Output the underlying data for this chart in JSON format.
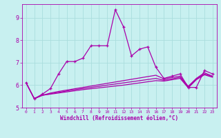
{
  "title": "",
  "xlabel": "Windchill (Refroidissement éolien,°C)",
  "ylabel": "",
  "background_color": "#c8f0f0",
  "line_color": "#aa00aa",
  "grid_color": "#aadddd",
  "xlim": [
    -0.5,
    23.5
  ],
  "ylim": [
    5.0,
    9.6
  ],
  "yticks": [
    5,
    6,
    7,
    8,
    9
  ],
  "xticks": [
    0,
    1,
    2,
    3,
    4,
    5,
    6,
    7,
    8,
    9,
    10,
    11,
    12,
    13,
    14,
    15,
    16,
    17,
    18,
    19,
    20,
    21,
    22,
    23
  ],
  "series_main": [
    6.1,
    5.4,
    5.6,
    5.85,
    6.5,
    7.05,
    7.05,
    7.2,
    7.75,
    7.75,
    7.75,
    9.35,
    8.6,
    7.3,
    7.6,
    7.7,
    6.8,
    6.3,
    6.4,
    6.5,
    5.9,
    5.9,
    6.65,
    6.5
  ],
  "series_flat1": [
    6.1,
    5.4,
    5.55,
    5.65,
    5.72,
    5.78,
    5.84,
    5.9,
    5.96,
    6.02,
    6.08,
    6.14,
    6.2,
    6.26,
    6.32,
    6.38,
    6.44,
    6.28,
    6.34,
    6.4,
    5.95,
    6.3,
    6.55,
    6.4
  ],
  "series_flat2": [
    6.1,
    5.4,
    5.55,
    5.62,
    5.68,
    5.74,
    5.8,
    5.85,
    5.9,
    5.95,
    6.0,
    6.05,
    6.1,
    6.15,
    6.2,
    6.25,
    6.3,
    6.22,
    6.28,
    6.35,
    5.92,
    6.27,
    6.5,
    6.38
  ],
  "series_flat3": [
    6.1,
    5.4,
    5.55,
    5.6,
    5.65,
    5.7,
    5.75,
    5.8,
    5.84,
    5.88,
    5.92,
    5.96,
    6.0,
    6.05,
    6.1,
    6.15,
    6.2,
    6.18,
    6.24,
    6.3,
    5.88,
    6.24,
    6.46,
    6.35
  ]
}
